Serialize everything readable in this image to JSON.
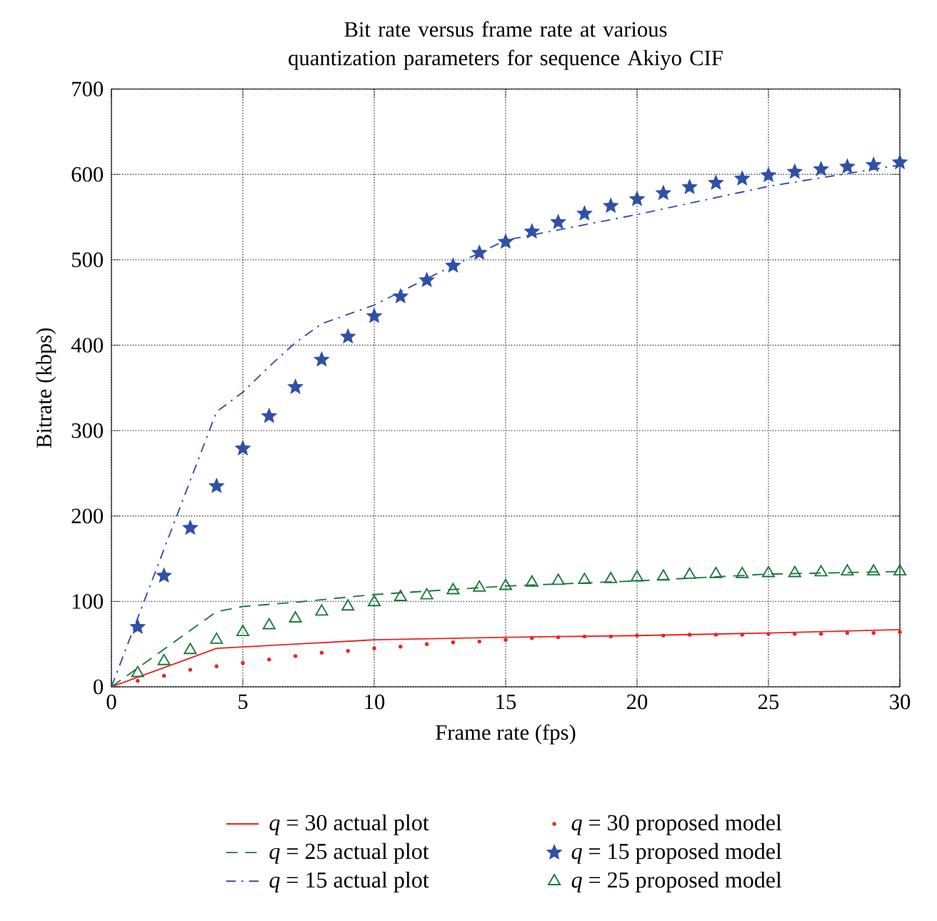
{
  "chart_data": {
    "type": "line",
    "title": "Bit rate versus frame rate at various quantization parameters for sequence Akiyo CIF",
    "xlabel": "Frame rate (fps)",
    "ylabel": "Bitrate (kbps)",
    "xlim": [
      0,
      30
    ],
    "ylim": [
      0,
      700
    ],
    "xticks": [
      0,
      5,
      10,
      15,
      20,
      25,
      30
    ],
    "yticks": [
      0,
      100,
      200,
      300,
      400,
      500,
      600,
      700
    ],
    "grid": true,
    "legend": "bottom",
    "series": [
      {
        "name": "*q* = 30 actual plot",
        "color": "#ee2222",
        "line_style": "solid",
        "marker": "none",
        "x": [
          0,
          4,
          7,
          10,
          15,
          20,
          25,
          30
        ],
        "values": [
          0,
          45,
          50,
          55,
          58,
          60,
          63,
          67
        ]
      },
      {
        "name": "*q* = 25 actual plot",
        "color": "#1a7a3a",
        "line_style": "dashed",
        "marker": "none",
        "x": [
          0,
          4,
          5,
          7,
          10,
          15,
          20,
          25,
          30
        ],
        "values": [
          0,
          88,
          94,
          99,
          108,
          118,
          124,
          132,
          135
        ]
      },
      {
        "name": "*q* = 15 actual plot",
        "color": "#3050a8",
        "line_style": "dashdot",
        "marker": "none",
        "x": [
          0,
          4,
          5,
          6,
          7,
          8,
          10,
          12,
          15,
          20,
          25,
          30
        ],
        "values": [
          0,
          322,
          345,
          375,
          403,
          425,
          447,
          478,
          523,
          553,
          586,
          611
        ]
      },
      {
        "name": "*q* = 30 proposed model",
        "type": "scatter",
        "color": "#ee2222",
        "marker": "circle",
        "x": [
          1,
          2,
          3,
          4,
          5,
          6,
          7,
          8,
          9,
          10,
          11,
          12,
          13,
          14,
          15,
          16,
          17,
          18,
          19,
          20,
          21,
          22,
          23,
          24,
          25,
          26,
          27,
          28,
          29,
          30
        ],
        "values": [
          7,
          13,
          20,
          24,
          28,
          32,
          36,
          40,
          42,
          45,
          47,
          50,
          52,
          53,
          55,
          57,
          58,
          59,
          59,
          60,
          60,
          61,
          61,
          61,
          62,
          62,
          62,
          63,
          63,
          64
        ]
      },
      {
        "name": "*q* = 15 proposed model",
        "type": "scatter",
        "color": "#3050a8",
        "marker": "star",
        "x": [
          1,
          2,
          3,
          4,
          5,
          6,
          7,
          8,
          9,
          10,
          11,
          12,
          13,
          14,
          15,
          16,
          17,
          18,
          19,
          20,
          21,
          22,
          23,
          24,
          25,
          26,
          27,
          28,
          29,
          30
        ],
        "values": [
          70,
          130,
          186,
          235,
          279,
          317,
          351,
          383,
          410,
          434,
          457,
          476,
          493,
          508,
          521,
          533,
          544,
          554,
          563,
          571,
          578,
          585,
          590,
          595,
          599,
          603,
          606,
          609,
          611,
          614
        ]
      },
      {
        "name": "*q* = 25 proposed model",
        "type": "scatter",
        "color": "#1a7a3a",
        "marker": "triangle",
        "x": [
          1,
          2,
          3,
          4,
          5,
          6,
          7,
          8,
          9,
          10,
          11,
          12,
          13,
          14,
          15,
          16,
          17,
          18,
          19,
          20,
          21,
          22,
          23,
          24,
          25,
          26,
          27,
          28,
          29,
          30
        ],
        "values": [
          16,
          30,
          43,
          55,
          64,
          72,
          80,
          88,
          94,
          99,
          105,
          107,
          113,
          116,
          118,
          122,
          124,
          125,
          126,
          128,
          129,
          131,
          132,
          132,
          133,
          133,
          134,
          135,
          135,
          135
        ]
      }
    ]
  }
}
